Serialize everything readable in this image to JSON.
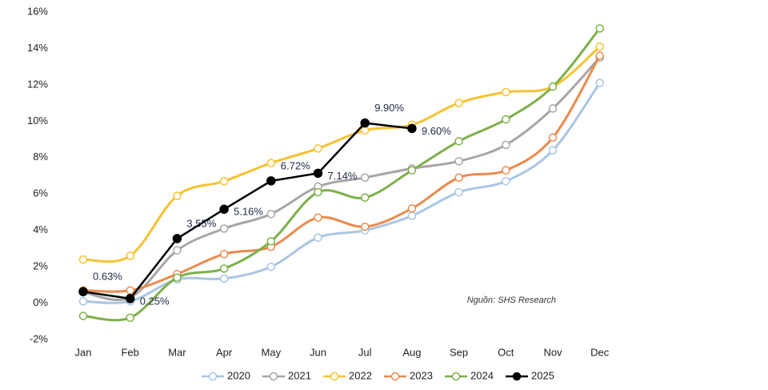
{
  "chart_data": {
    "type": "line",
    "categories": [
      "Jan",
      "Feb",
      "Mar",
      "Apr",
      "May",
      "Jun",
      "Jul",
      "Aug",
      "Sep",
      "Oct",
      "Nov",
      "Dec"
    ],
    "ylim": [
      -2,
      16
    ],
    "yticks": [
      {
        "value": -2,
        "label": "-2%"
      },
      {
        "value": 0,
        "label": "0%"
      },
      {
        "value": 2,
        "label": "2%"
      },
      {
        "value": 4,
        "label": "4%"
      },
      {
        "value": 6,
        "label": "6%"
      },
      {
        "value": 8,
        "label": "8%"
      },
      {
        "value": 10,
        "label": "10%"
      },
      {
        "value": 12,
        "label": "12%"
      },
      {
        "value": 14,
        "label": "14%"
      },
      {
        "value": 16,
        "label": "16%"
      }
    ],
    "annotation": "Nguồn: SHS Research",
    "legend": "bottom",
    "series": [
      {
        "name": "2020",
        "color": "#a9c6e3",
        "smooth": true,
        "values": [
          0.1,
          0.1,
          1.3,
          1.35,
          2.0,
          3.6,
          4.0,
          4.8,
          6.1,
          6.7,
          8.4,
          12.1
        ]
      },
      {
        "name": "2021",
        "color": "#a6a6a6",
        "smooth": true,
        "values": [
          0.6,
          0.3,
          2.9,
          4.1,
          4.9,
          6.4,
          6.9,
          7.4,
          7.8,
          8.7,
          10.7,
          13.5
        ]
      },
      {
        "name": "2022",
        "color": "#f7c232",
        "smooth": true,
        "values": [
          2.4,
          2.6,
          5.9,
          6.7,
          7.7,
          8.5,
          9.5,
          9.8,
          11.0,
          11.6,
          11.9,
          14.1
        ]
      },
      {
        "name": "2023",
        "color": "#ec8a4d",
        "smooth": true,
        "values": [
          0.7,
          0.7,
          1.6,
          2.7,
          3.1,
          4.7,
          4.2,
          5.2,
          6.9,
          7.3,
          9.1,
          13.6
        ]
      },
      {
        "name": "2024",
        "color": "#7db04a",
        "smooth": true,
        "values": [
          -0.7,
          -0.8,
          1.4,
          1.9,
          3.4,
          6.1,
          5.8,
          7.3,
          8.9,
          10.1,
          11.9,
          15.1
        ]
      },
      {
        "name": "2025",
        "color": "#000000",
        "smooth": false,
        "values": [
          0.63,
          0.25,
          3.55,
          5.16,
          6.72,
          7.14,
          9.9,
          9.6,
          null,
          null,
          null,
          null
        ],
        "value_labels": [
          "0.63%",
          "0.25%",
          "3.55%",
          "5.16%",
          "6.72%",
          "7.14%",
          "9.90%",
          "9.60%",
          null,
          null,
          null,
          null
        ]
      }
    ]
  }
}
